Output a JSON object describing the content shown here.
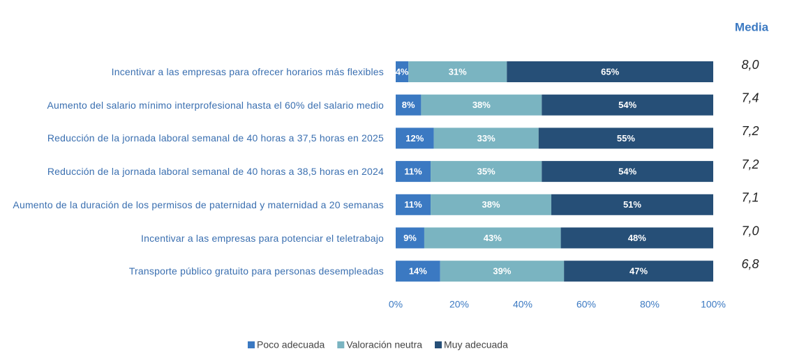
{
  "chart_data": {
    "type": "stacked-bar-horizontal",
    "categories": [
      "Incentivar a las empresas para ofrecer horarios más flexibles",
      "Aumento del salario mínimo interprofesional hasta el 60% del salario medio",
      "Reducción de la jornada laboral semanal de 40 horas a 37,5 horas en 2025",
      "Reducción de la jornada laboral semanal de 40 horas a 38,5 horas en 2024",
      "Aumento de la duración de los permisos de paternidad y maternidad a 20 semanas",
      "Incentivar a las empresas para potenciar el teletrabajo",
      "Transporte público gratuito para personas desempleadas"
    ],
    "series": [
      {
        "name": "Poco adecuada",
        "color": "#3b79c2",
        "values": [
          4,
          8,
          12,
          11,
          11,
          9,
          14
        ],
        "value_labels": [
          "4%",
          "8%",
          "12%",
          "11%",
          "11%",
          "9%",
          "14%"
        ]
      },
      {
        "name": "Valoración neutra",
        "color": "#7ab4c1",
        "values": [
          31,
          38,
          33,
          35,
          38,
          43,
          39
        ],
        "value_labels": [
          "31%",
          "38%",
          "33%",
          "35%",
          "38%",
          "43%",
          "39%"
        ]
      },
      {
        "name": "Muy adecuada",
        "color": "#264f77",
        "values": [
          65,
          54,
          55,
          54,
          51,
          48,
          47
        ],
        "value_labels": [
          "65%",
          "54%",
          "55%",
          "54%",
          "51%",
          "48%",
          "47%"
        ]
      }
    ],
    "media": {
      "title": "Media",
      "values": [
        8.0,
        7.4,
        7.2,
        7.2,
        7.1,
        7.0,
        6.8
      ],
      "value_labels": [
        "8,0",
        "7,4",
        "7,2",
        "7,2",
        "7,1",
        "7,0",
        "6,8"
      ]
    },
    "xlim": [
      0,
      100
    ],
    "xticks": [
      {
        "value": 0,
        "label": "0%"
      },
      {
        "value": 20,
        "label": "20%"
      },
      {
        "value": 40,
        "label": "40%"
      },
      {
        "value": 60,
        "label": "60%"
      },
      {
        "value": 80,
        "label": "80%"
      },
      {
        "value": 100,
        "label": "100%"
      }
    ],
    "legend": "bottom"
  }
}
